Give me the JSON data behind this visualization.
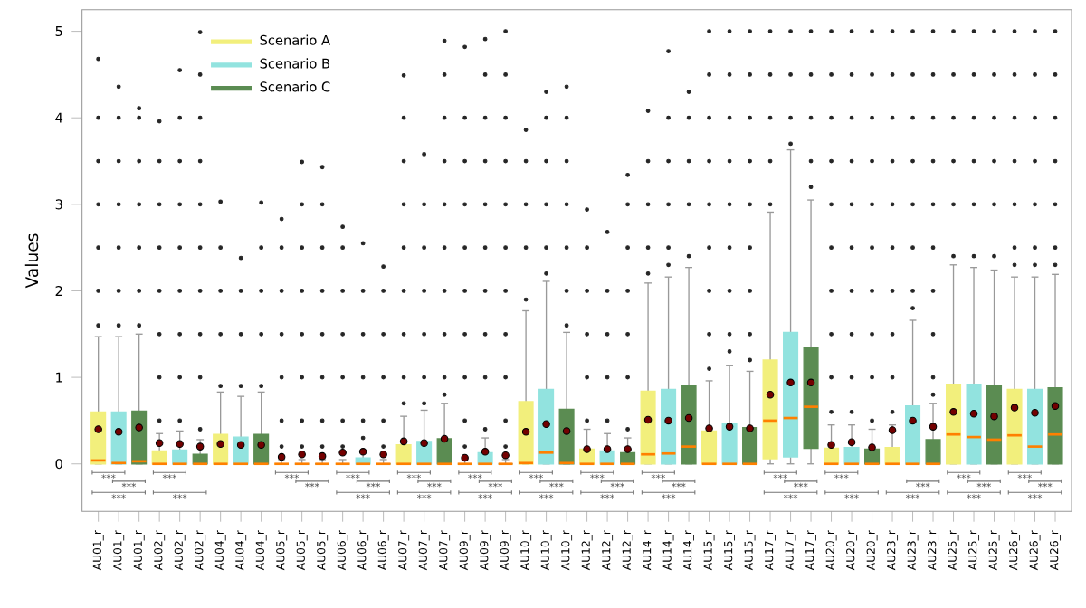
{
  "chart_data": {
    "type": "box",
    "ylabel": "Values",
    "ylim": [
      -0.55,
      5.25
    ],
    "yticks": [
      0,
      1,
      2,
      3,
      4,
      5
    ],
    "legend": "top left",
    "categories": [
      "AU01_r",
      "AU01_r",
      "AU01_r",
      "AU02_r",
      "AU02_r",
      "AU02_r",
      "AU04_r",
      "AU04_r",
      "AU04_r",
      "AU05_r",
      "AU05_r",
      "AU05_r",
      "AU06_r",
      "AU06_r",
      "AU06_r",
      "AU07_r",
      "AU07_r",
      "AU07_r",
      "AU09_r",
      "AU09_r",
      "AU09_r",
      "AU10_r",
      "AU10_r",
      "AU10_r",
      "AU12_r",
      "AU12_r",
      "AU12_r",
      "AU14_r",
      "AU14_r",
      "AU14_r",
      "AU15_r",
      "AU15_r",
      "AU15_r",
      "AU17_r",
      "AU17_r",
      "AU17_r",
      "AU20_r",
      "AU20_r",
      "AU20_r",
      "AU23_r",
      "AU23_r",
      "AU23_r",
      "AU25_r",
      "AU25_r",
      "AU25_r",
      "AU26_r",
      "AU26_r",
      "AU26_r"
    ],
    "series": [
      {
        "name": "Scenario A",
        "color": "#f2ef7c",
        "boxes": [
          {
            "low": 0,
            "q1": 0,
            "median": 0.04,
            "q3": 0.6,
            "high": 1.47,
            "mean": 0.4,
            "outliers": [
              1.6,
              2,
              2.5,
              3,
              3.5,
              4,
              4.68
            ]
          },
          null,
          null,
          {
            "low": 0,
            "q1": 0,
            "median": 0,
            "q3": 0.15,
            "high": 0.35,
            "mean": 0.24,
            "outliers": [
              0.5,
              1,
              1.5,
              2,
              2.5,
              3,
              3.5,
              3.96
            ]
          },
          null,
          null,
          {
            "low": 0,
            "q1": 0,
            "median": 0,
            "q3": 0.34,
            "high": 0.83,
            "mean": 0.23,
            "outliers": [
              0.9,
              1.5,
              2,
              2.5,
              3.03
            ]
          },
          null,
          null,
          {
            "low": 0,
            "q1": 0,
            "median": 0,
            "q3": 0,
            "high": 0.05,
            "mean": 0.08,
            "outliers": [
              0.2,
              0.5,
              1,
              1.5,
              2,
              2.5,
              2.83
            ]
          },
          null,
          null,
          {
            "low": 0,
            "q1": 0,
            "median": 0,
            "q3": 0,
            "high": 0.05,
            "mean": 0.13,
            "outliers": [
              0.2,
              0.5,
              1,
              1.5,
              2,
              2.5,
              2.74
            ]
          },
          null,
          null,
          {
            "low": 0,
            "q1": 0,
            "median": 0,
            "q3": 0.22,
            "high": 0.55,
            "mean": 0.26,
            "outliers": [
              0.7,
              1,
              1.5,
              2,
              2.5,
              3,
              3.5,
              4,
              4.49
            ]
          },
          null,
          null,
          {
            "low": 0,
            "q1": 0,
            "median": 0,
            "q3": 0,
            "high": 0.05,
            "mean": 0.07,
            "outliers": [
              0.2,
              0.5,
              1,
              1.5,
              2,
              2.5,
              3,
              3.5,
              4,
              4.82
            ]
          },
          null,
          null,
          {
            "low": 0,
            "q1": 0,
            "median": 0.01,
            "q3": 0.72,
            "high": 1.77,
            "mean": 0.37,
            "outliers": [
              1.9,
              2.5,
              3,
              3.5,
              3.86
            ]
          },
          null,
          null,
          {
            "low": 0,
            "q1": 0,
            "median": 0,
            "q3": 0.17,
            "high": 0.4,
            "mean": 0.17,
            "outliers": [
              0.5,
              1,
              1.5,
              2,
              2.5,
              2.94
            ]
          },
          null,
          null,
          {
            "low": 0,
            "q1": 0,
            "median": 0.11,
            "q3": 0.84,
            "high": 2.09,
            "mean": 0.51,
            "outliers": [
              2.2,
              2.5,
              3,
              3.5,
              4.08
            ]
          },
          null,
          null,
          {
            "low": 0,
            "q1": 0,
            "median": 0,
            "q3": 0.38,
            "high": 0.96,
            "mean": 0.41,
            "outliers": [
              1.1,
              1.5,
              2,
              2.5,
              3,
              3.5,
              4,
              4.5,
              5
            ]
          },
          null,
          null,
          {
            "low": 0,
            "q1": 0.06,
            "median": 0.5,
            "q3": 1.2,
            "high": 2.91,
            "mean": 0.8,
            "outliers": [
              3,
              3.5,
              4,
              4.5,
              5
            ]
          },
          null,
          null,
          {
            "low": 0,
            "q1": 0,
            "median": 0,
            "q3": 0.18,
            "high": 0.45,
            "mean": 0.22,
            "outliers": [
              0.6,
              1,
              1.5,
              2,
              2.5,
              3,
              3.5,
              4,
              4.5,
              5
            ]
          },
          null,
          null,
          {
            "low": 0,
            "q1": 0,
            "median": 0,
            "q3": 0.19,
            "high": 0.45,
            "mean": 0.39,
            "outliers": [
              0.6,
              1,
              1.5,
              2,
              2.5,
              3,
              3.5,
              4,
              4.5,
              5
            ]
          },
          null,
          null,
          {
            "low": 0,
            "q1": 0,
            "median": 0.34,
            "q3": 0.92,
            "high": 2.3,
            "mean": 0.6,
            "outliers": [
              2.4,
              3,
              3.5,
              4,
              4.5,
              5
            ]
          },
          null,
          null,
          {
            "low": 0,
            "q1": 0,
            "median": 0.33,
            "q3": 0.86,
            "high": 2.16,
            "mean": 0.65,
            "outliers": [
              2.3,
              2.5,
              3,
              3.5,
              4,
              4.5,
              5
            ]
          },
          null,
          null
        ]
      },
      {
        "name": "Scenario B",
        "color": "#92e3df",
        "boxes": [
          null,
          {
            "low": 0,
            "q1": 0,
            "median": 0.01,
            "q3": 0.6,
            "high": 1.47,
            "mean": 0.37,
            "outliers": [
              1.6,
              2,
              2.5,
              3,
              3.5,
              4,
              4.36
            ]
          },
          null,
          null,
          {
            "low": 0,
            "q1": 0,
            "median": 0,
            "q3": 0.16,
            "high": 0.38,
            "mean": 0.23,
            "outliers": [
              0.5,
              1,
              1.5,
              2,
              2.5,
              3,
              3.5,
              4,
              4.55
            ]
          },
          null,
          null,
          {
            "low": 0,
            "q1": 0,
            "median": 0,
            "q3": 0.31,
            "high": 0.78,
            "mean": 0.22,
            "outliers": [
              0.9,
              1.5,
              2,
              2.38
            ]
          },
          null,
          null,
          {
            "low": 0,
            "q1": 0,
            "median": 0,
            "q3": 0,
            "high": 0.05,
            "mean": 0.11,
            "outliers": [
              0.2,
              0.5,
              1,
              1.5,
              2,
              2.5,
              3,
              3.49
            ]
          },
          null,
          null,
          {
            "low": 0,
            "q1": 0,
            "median": 0,
            "q3": 0.07,
            "high": 0.15,
            "mean": 0.14,
            "outliers": [
              0.3,
              0.5,
              1,
              1.5,
              2,
              2.55
            ]
          },
          null,
          null,
          {
            "low": 0,
            "q1": 0,
            "median": 0,
            "q3": 0.26,
            "high": 0.62,
            "mean": 0.24,
            "outliers": [
              0.7,
              1,
              1.5,
              2,
              2.5,
              3,
              3.58
            ]
          },
          null,
          null,
          {
            "low": 0,
            "q1": 0,
            "median": 0,
            "q3": 0.13,
            "high": 0.3,
            "mean": 0.14,
            "outliers": [
              0.4,
              1,
              1.5,
              2,
              2.5,
              3,
              3.5,
              4,
              4.5,
              4.91
            ]
          },
          null,
          null,
          {
            "low": 0,
            "q1": 0,
            "median": 0.13,
            "q3": 0.86,
            "high": 2.11,
            "mean": 0.46,
            "outliers": [
              2.2,
              2.5,
              3,
              3.5,
              4,
              4.3
            ]
          },
          null,
          null,
          {
            "low": 0,
            "q1": 0,
            "median": 0,
            "q3": 0.15,
            "high": 0.35,
            "mean": 0.17,
            "outliers": [
              0.5,
              1,
              1.5,
              2,
              2.68
            ]
          },
          null,
          null,
          {
            "low": 0,
            "q1": 0,
            "median": 0.12,
            "q3": 0.86,
            "high": 2.16,
            "mean": 0.5,
            "outliers": [
              2.3,
              2.5,
              3,
              3.5,
              4,
              4.77
            ]
          },
          null,
          null,
          {
            "low": 0,
            "q1": 0,
            "median": 0,
            "q3": 0.46,
            "high": 1.14,
            "mean": 0.43,
            "outliers": [
              1.3,
              1.5,
              2,
              2.5,
              3,
              3.5,
              4,
              4.5,
              5
            ]
          },
          null,
          null,
          {
            "low": 0,
            "q1": 0.08,
            "median": 0.53,
            "q3": 1.52,
            "high": 3.63,
            "mean": 0.94,
            "outliers": [
              3.7,
              4,
              4.5,
              5
            ]
          },
          null,
          null,
          {
            "low": 0,
            "q1": 0,
            "median": 0,
            "q3": 0.19,
            "high": 0.45,
            "mean": 0.25,
            "outliers": [
              0.6,
              1,
              1.5,
              2,
              2.5,
              3,
              3.5,
              4,
              4.5,
              5
            ]
          },
          null,
          null,
          {
            "low": 0,
            "q1": 0,
            "median": 0,
            "q3": 0.67,
            "high": 1.66,
            "mean": 0.5,
            "outliers": [
              1.8,
              2,
              2.5,
              3,
              3.5,
              4,
              4.5,
              5
            ]
          },
          null,
          null,
          {
            "low": 0,
            "q1": 0,
            "median": 0.31,
            "q3": 0.92,
            "high": 2.27,
            "mean": 0.58,
            "outliers": [
              2.4,
              3,
              3.5,
              4,
              4.5,
              5
            ]
          },
          null,
          null,
          {
            "low": 0,
            "q1": 0,
            "median": 0.2,
            "q3": 0.86,
            "high": 2.16,
            "mean": 0.59,
            "outliers": [
              2.3,
              2.5,
              3,
              3.5,
              4,
              4.5,
              5
            ]
          },
          null
        ]
      },
      {
        "name": "Scenario C",
        "color": "#5b8c52",
        "boxes": [
          null,
          null,
          {
            "low": 0,
            "q1": 0,
            "median": 0.03,
            "q3": 0.61,
            "high": 1.5,
            "mean": 0.42,
            "outliers": [
              1.6,
              2,
              2.5,
              3,
              3.5,
              4,
              4.11
            ]
          },
          null,
          null,
          {
            "low": 0,
            "q1": 0,
            "median": 0,
            "q3": 0.11,
            "high": 0.28,
            "mean": 0.2,
            "outliers": [
              0.4,
              1,
              1.5,
              2,
              2.5,
              3,
              3.5,
              4,
              4.5,
              4.99
            ]
          },
          null,
          null,
          {
            "low": 0,
            "q1": 0,
            "median": 0,
            "q3": 0.34,
            "high": 0.83,
            "mean": 0.22,
            "outliers": [
              0.9,
              1.5,
              2,
              2.5,
              3.02
            ]
          },
          null,
          null,
          {
            "low": 0,
            "q1": 0,
            "median": 0,
            "q3": 0,
            "high": 0.05,
            "mean": 0.09,
            "outliers": [
              0.2,
              0.5,
              1,
              1.5,
              2,
              2.5,
              3,
              3.43
            ]
          },
          null,
          null,
          {
            "low": 0,
            "q1": 0,
            "median": 0,
            "q3": 0,
            "high": 0.05,
            "mean": 0.11,
            "outliers": [
              0.2,
              0.5,
              1,
              1.5,
              2,
              2.28
            ]
          },
          null,
          null,
          {
            "low": 0,
            "q1": 0,
            "median": 0,
            "q3": 0.29,
            "high": 0.7,
            "mean": 0.29,
            "outliers": [
              0.8,
              1,
              1.5,
              2,
              2.5,
              3,
              3.5,
              4,
              4.5,
              4.89
            ]
          },
          null,
          null,
          {
            "low": 0,
            "q1": 0,
            "median": 0,
            "q3": 0,
            "high": 0.05,
            "mean": 0.1,
            "outliers": [
              0.2,
              0.5,
              1,
              1.5,
              2,
              2.5,
              3,
              3.5,
              4,
              4.5,
              5
            ]
          },
          null,
          null,
          {
            "low": 0,
            "q1": 0,
            "median": 0.01,
            "q3": 0.63,
            "high": 1.52,
            "mean": 0.38,
            "outliers": [
              1.6,
              2,
              2.5,
              3,
              3.5,
              4,
              4.36
            ]
          },
          null,
          null,
          {
            "low": 0,
            "q1": 0,
            "median": 0,
            "q3": 0.13,
            "high": 0.3,
            "mean": 0.17,
            "outliers": [
              0.4,
              1,
              1.5,
              2,
              2.5,
              3,
              3.34
            ]
          },
          null,
          null,
          {
            "low": 0,
            "q1": 0,
            "median": 0.2,
            "q3": 0.91,
            "high": 2.27,
            "mean": 0.53,
            "outliers": [
              2.4,
              3,
              3.5,
              4,
              4.3
            ]
          },
          null,
          null,
          {
            "low": 0,
            "q1": 0,
            "median": 0,
            "q3": 0.42,
            "high": 1.07,
            "mean": 0.41,
            "outliers": [
              1.2,
              1.5,
              2,
              2.5,
              3,
              3.5,
              4,
              4.5,
              5
            ]
          },
          null,
          null,
          {
            "low": 0,
            "q1": 0.18,
            "median": 0.66,
            "q3": 1.34,
            "high": 3.05,
            "mean": 0.94,
            "outliers": [
              3.2,
              3.5,
              4,
              4.5,
              5
            ]
          },
          null,
          null,
          {
            "low": 0,
            "q1": 0,
            "median": 0,
            "q3": 0.17,
            "high": 0.4,
            "mean": 0.19,
            "outliers": [
              0.5,
              1,
              1.5,
              2,
              2.5,
              3,
              3.5,
              4,
              4.5,
              5
            ]
          },
          null,
          null,
          {
            "low": 0,
            "q1": 0,
            "median": 0,
            "q3": 0.28,
            "high": 0.7,
            "mean": 0.43,
            "outliers": [
              0.8,
              1,
              1.5,
              2,
              2.5,
              3,
              3.5,
              4,
              4.5,
              5
            ]
          },
          null,
          null,
          {
            "low": 0,
            "q1": 0,
            "median": 0.28,
            "q3": 0.9,
            "high": 2.24,
            "mean": 0.55,
            "outliers": [
              2.4,
              3,
              3.5,
              4,
              4.5,
              5
            ]
          },
          null,
          null,
          {
            "low": 0,
            "q1": 0,
            "median": 0.34,
            "q3": 0.88,
            "high": 2.19,
            "mean": 0.67,
            "outliers": [
              2.3,
              2.5,
              3,
              3.5,
              4,
              4.5,
              5
            ]
          }
        ]
      }
    ],
    "annotations": [
      "***",
      "***",
      "***",
      "***",
      "***",
      "***",
      "***",
      "***",
      "***",
      "***",
      "***",
      "***",
      "***",
      "***",
      "***",
      "***",
      "***",
      "***",
      "***",
      "***",
      "***",
      "***",
      "***",
      "***",
      "***",
      "***",
      "***",
      "***",
      "***",
      "***",
      "***",
      "***",
      "***",
      "***",
      "***",
      "***",
      "***",
      "***"
    ]
  }
}
